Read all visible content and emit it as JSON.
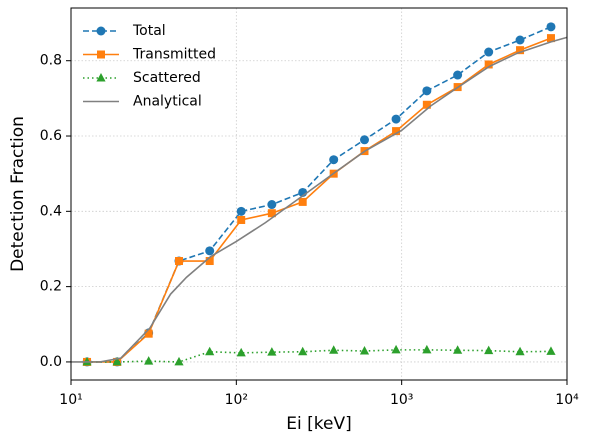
{
  "chart_data": {
    "type": "line",
    "xlabel": "Ei [keV]",
    "ylabel": "Detection Fraction",
    "xscale": "log",
    "xlim": [
      10,
      10000
    ],
    "xticks": [
      {
        "value": 10,
        "label": "10¹"
      },
      {
        "value": 100,
        "label": "10²"
      },
      {
        "value": 1000,
        "label": "10³"
      },
      {
        "value": 10000,
        "label": "10⁴"
      }
    ],
    "ylim": [
      -0.048,
      0.94
    ],
    "yticks": [
      {
        "value": 0,
        "label": "0.0"
      },
      0.2,
      0.4,
      0.6,
      0.8
    ],
    "grid": true,
    "legend": "upper left",
    "series": [
      {
        "name": "Total",
        "color": "#1f77b4",
        "marker": "circle",
        "linestyle": "dashed",
        "x": [
          12.5,
          19,
          29.5,
          45,
          69,
          107,
          164,
          252,
          388,
          596,
          925,
          1420,
          2180,
          3360,
          5200,
          8000
        ],
        "values": [
          0,
          0,
          0.077,
          0.268,
          0.295,
          0.4,
          0.418,
          0.45,
          0.537,
          0.59,
          0.645,
          0.72,
          0.762,
          0.823,
          0.855,
          0.89
        ]
      },
      {
        "name": "Transmitted",
        "color": "#ff7f0e",
        "marker": "square",
        "linestyle": "solid",
        "x": [
          12.5,
          19,
          29.5,
          45,
          69,
          107,
          164,
          252,
          388,
          596,
          925,
          1420,
          2180,
          3360,
          5200,
          8000
        ],
        "values": [
          0,
          0,
          0.075,
          0.268,
          0.268,
          0.377,
          0.395,
          0.425,
          0.5,
          0.56,
          0.613,
          0.683,
          0.73,
          0.79,
          0.828,
          0.86
        ]
      },
      {
        "name": "Scattered",
        "color": "#2ca02c",
        "marker": "triangle",
        "linestyle": "dotted",
        "x": [
          12.5,
          19,
          29.5,
          45,
          69,
          107,
          164,
          252,
          388,
          596,
          925,
          1420,
          2180,
          3360,
          5200,
          8000
        ],
        "values": [
          0,
          0,
          0.002,
          0,
          0.027,
          0.024,
          0.026,
          0.027,
          0.031,
          0.029,
          0.032,
          0.032,
          0.031,
          0.03,
          0.027,
          0.028
        ]
      },
      {
        "name": "Analytical",
        "color": "#808080",
        "marker": "none",
        "linestyle": "solid",
        "x": [
          10,
          15,
          20,
          30,
          40,
          50,
          70,
          100,
          150,
          250,
          400,
          600,
          1000,
          1500,
          2200,
          3400,
          5000,
          8000,
          10000
        ],
        "values": [
          0,
          0,
          0.01,
          0.09,
          0.18,
          0.225,
          0.28,
          0.32,
          0.37,
          0.44,
          0.505,
          0.56,
          0.615,
          0.68,
          0.73,
          0.785,
          0.82,
          0.85,
          0.862
        ]
      }
    ]
  }
}
